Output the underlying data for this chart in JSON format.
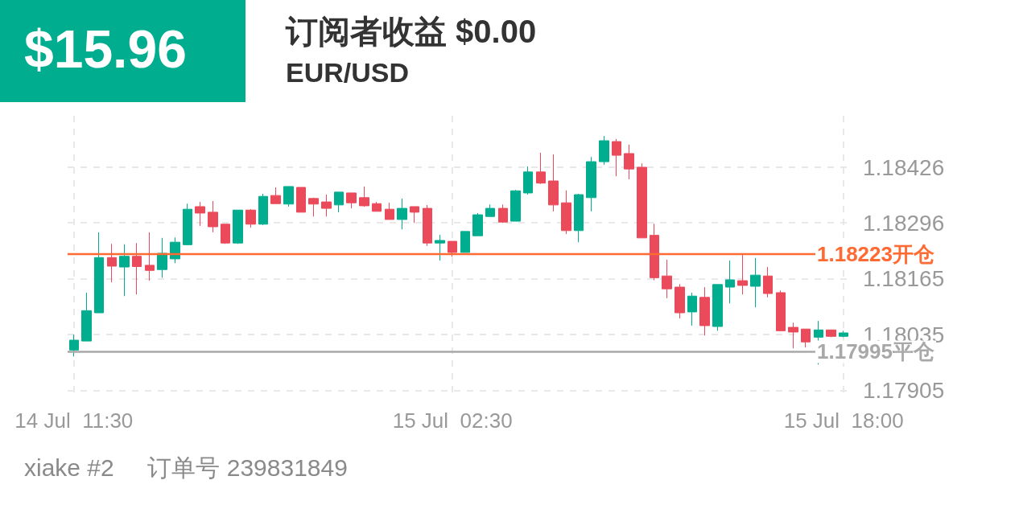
{
  "chart_data": {
    "type": "candlestick",
    "title": "订阅者收益 $0.00",
    "subtitle": "EUR/USD",
    "annotations": [
      "$15.96",
      "xiake #2     订单号 239831849"
    ],
    "categories": [
      "14 Jul  11:30",
      null,
      null,
      null,
      null,
      null,
      null,
      null,
      null,
      null,
      null,
      null,
      null,
      null,
      null,
      null,
      null,
      null,
      null,
      null,
      null,
      null,
      null,
      null,
      null,
      null,
      null,
      null,
      null,
      null,
      "15 Jul  02:30",
      null,
      null,
      null,
      null,
      null,
      null,
      null,
      null,
      null,
      null,
      null,
      null,
      null,
      null,
      null,
      null,
      null,
      null,
      null,
      null,
      null,
      null,
      null,
      null,
      null,
      null,
      null,
      null,
      null,
      null,
      "15 Jul  18:00"
    ],
    "ohlc": [
      [
        1.17999,
        1.18035,
        1.17984,
        1.18022
      ],
      [
        1.1802,
        1.18133,
        1.1802,
        1.18091
      ],
      [
        1.18086,
        1.18274,
        1.18086,
        1.18215
      ],
      [
        1.18215,
        1.18247,
        1.18157,
        1.18195
      ],
      [
        1.18193,
        1.18246,
        1.18125,
        1.18218
      ],
      [
        1.18218,
        1.18249,
        1.18129,
        1.18194
      ],
      [
        1.18197,
        1.18274,
        1.18161,
        1.18185
      ],
      [
        1.18187,
        1.18261,
        1.18168,
        1.18225
      ],
      [
        1.18212,
        1.18262,
        1.18202,
        1.18251
      ],
      [
        1.18245,
        1.18341,
        1.18245,
        1.18328
      ],
      [
        1.18334,
        1.18345,
        1.18289,
        1.18319
      ],
      [
        1.18321,
        1.18347,
        1.18274,
        1.18287
      ],
      [
        1.18293,
        1.18293,
        1.18247,
        1.18249
      ],
      [
        1.18249,
        1.18326,
        1.18247,
        1.18326
      ],
      [
        1.18326,
        1.18328,
        1.18285,
        1.18293
      ],
      [
        1.18293,
        1.18364,
        1.18291,
        1.18358
      ],
      [
        1.1836,
        1.18379,
        1.18341,
        1.18341
      ],
      [
        1.1834,
        1.18381,
        1.18334,
        1.18381
      ],
      [
        1.18379,
        1.18379,
        1.18321,
        1.18321
      ],
      [
        1.18353,
        1.18355,
        1.18311,
        1.1834
      ],
      [
        1.18345,
        1.18362,
        1.18311,
        1.1833
      ],
      [
        1.18338,
        1.18368,
        1.18321,
        1.18368
      ],
      [
        1.18366,
        1.18366,
        1.1833,
        1.18343
      ],
      [
        1.18355,
        1.18381,
        1.18334,
        1.18336
      ],
      [
        1.18341,
        1.18345,
        1.18323,
        1.18323
      ],
      [
        1.18328,
        1.18343,
        1.18304,
        1.18304
      ],
      [
        1.18304,
        1.18353,
        1.18281,
        1.1833
      ],
      [
        1.18334,
        1.18334,
        1.18296,
        1.18321
      ],
      [
        1.1833,
        1.18338,
        1.18242,
        1.18249
      ],
      [
        1.18249,
        1.18268,
        1.18208,
        1.18255
      ],
      [
        1.18253,
        1.18253,
        1.18217,
        1.18227
      ],
      [
        1.18227,
        1.18276,
        1.18227,
        1.18276
      ],
      [
        1.18266,
        1.18319,
        1.18266,
        1.18315
      ],
      [
        1.18311,
        1.18339,
        1.18311,
        1.1833
      ],
      [
        1.1833,
        1.18339,
        1.18296,
        1.18298
      ],
      [
        1.183,
        1.18373,
        1.183,
        1.18371
      ],
      [
        1.18366,
        1.18428,
        1.18362,
        1.18415
      ],
      [
        1.18415,
        1.1846,
        1.18387,
        1.18389
      ],
      [
        1.18394,
        1.18456,
        1.18323,
        1.18338
      ],
      [
        1.18343,
        1.18372,
        1.1827,
        1.18278
      ],
      [
        1.18278,
        1.18364,
        1.18251,
        1.18362
      ],
      [
        1.18355,
        1.1845,
        1.18323,
        1.18439
      ],
      [
        1.18439,
        1.18499,
        1.18432,
        1.18488
      ],
      [
        1.18486,
        1.18492,
        1.18405,
        1.18454
      ],
      [
        1.18458,
        1.18479,
        1.18398,
        1.18422
      ],
      [
        1.18426,
        1.18435,
        1.18261,
        1.18261
      ],
      [
        1.18267,
        1.18294,
        1.18162,
        1.18168
      ],
      [
        1.18172,
        1.1821,
        1.1812,
        1.18142
      ],
      [
        1.18146,
        1.18153,
        1.18073,
        1.18086
      ],
      [
        1.18088,
        1.18133,
        1.18056,
        1.18125
      ],
      [
        1.18122,
        1.18146,
        1.18033,
        1.18056
      ],
      [
        1.18054,
        1.18152,
        1.18044,
        1.18152
      ],
      [
        1.18146,
        1.18208,
        1.18108,
        1.18163
      ],
      [
        1.18161,
        1.18225,
        1.18129,
        1.1815
      ],
      [
        1.18148,
        1.18214,
        1.18099,
        1.18174
      ],
      [
        1.18172,
        1.18193,
        1.18122,
        1.18131
      ],
      [
        1.18133,
        1.18138,
        1.18044,
        1.18044
      ],
      [
        1.18052,
        1.18063,
        1.18003,
        1.18041
      ],
      [
        1.18048,
        1.18048,
        1.18005,
        1.18018
      ],
      [
        1.18029,
        1.18067,
        1.17965,
        1.18046
      ],
      [
        1.18046,
        1.18046,
        1.18029,
        1.18031
      ],
      [
        1.18031,
        1.18044,
        1.18029,
        1.18039
      ]
    ],
    "colors": [
      "#00ae8f",
      "#00ae8f",
      "#00ae8f",
      "#ea4a5a",
      "#00ae8f",
      "#ea4a5a",
      "#ea4a5a",
      "#00ae8f",
      "#00ae8f",
      "#00ae8f",
      "#ea4a5a",
      "#ea4a5a",
      "#ea4a5a",
      "#00ae8f",
      "#ea4a5a",
      "#00ae8f",
      "#ea4a5a",
      "#00ae8f",
      "#ea4a5a",
      "#ea4a5a",
      "#ea4a5a",
      "#00ae8f",
      "#ea4a5a",
      "#ea4a5a",
      "#ea4a5a",
      "#ea4a5a",
      "#00ae8f",
      "#ea4a5a",
      "#ea4a5a",
      "#00ae8f",
      "#ea4a5a",
      "#00ae8f",
      "#00ae8f",
      "#00ae8f",
      "#ea4a5a",
      "#00ae8f",
      "#00ae8f",
      "#ea4a5a",
      "#ea4a5a",
      "#ea4a5a",
      "#00ae8f",
      "#00ae8f",
      "#00ae8f",
      "#ea4a5a",
      "#ea4a5a",
      "#ea4a5a",
      "#ea4a5a",
      "#ea4a5a",
      "#ea4a5a",
      "#00ae8f",
      "#ea4a5a",
      "#00ae8f",
      "#00ae8f",
      "#ea4a5a",
      "#00ae8f",
      "#ea4a5a",
      "#ea4a5a",
      "#ea4a5a",
      "#ea4a5a",
      "#00ae8f",
      "#ea4a5a",
      "#00ae8f"
    ],
    "ylim": [
      1.179,
      1.1855
    ],
    "yticks": [
      1.17905,
      1.18035,
      1.18165,
      1.18296,
      1.18426
    ],
    "ref_lines": [
      {
        "axis": "y",
        "value": 1.18223,
        "label": "1.18223开仓",
        "color": "#ff6a33",
        "line_style": "solid"
      },
      {
        "axis": "y",
        "value": 1.17995,
        "label": "1.17995平仓",
        "color": "#a8a8a8",
        "line_style": "solid"
      }
    ],
    "grid": true
  }
}
